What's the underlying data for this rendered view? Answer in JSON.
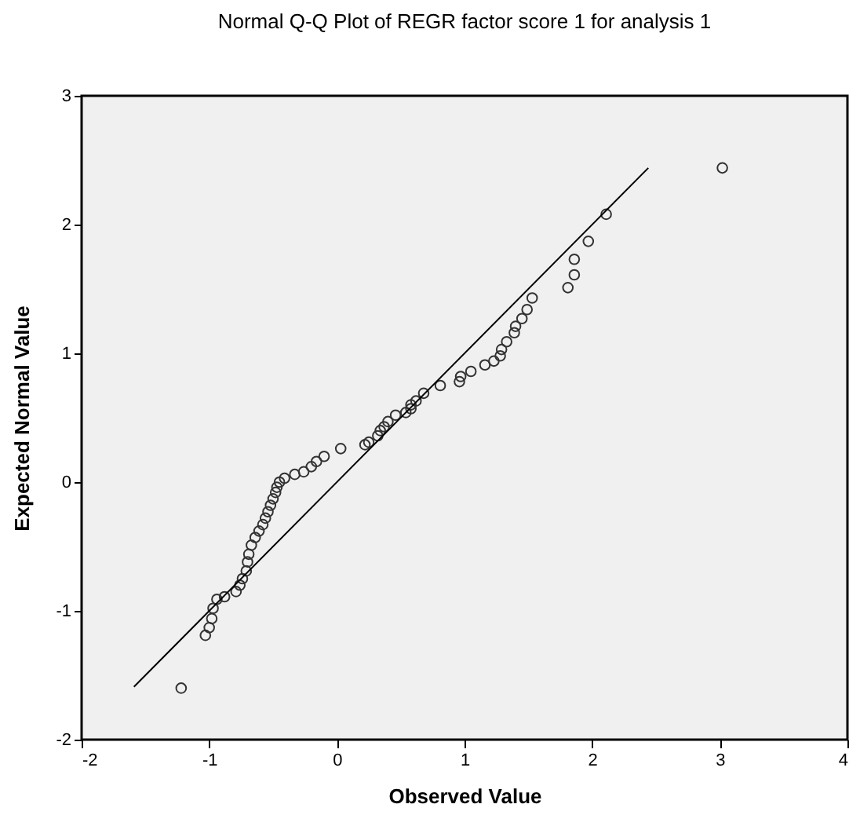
{
  "chart_data": {
    "type": "scatter",
    "title": "Normal Q-Q Plot of REGR factor score   1 for analysis 1",
    "xlabel": "Observed Value",
    "ylabel": "Expected Normal Value",
    "xlim": [
      -2,
      4
    ],
    "ylim": [
      -2,
      3
    ],
    "xticks": [
      -2,
      -1,
      0,
      1,
      2,
      3,
      4
    ],
    "yticks": [
      -2,
      -1,
      0,
      1,
      2,
      3
    ],
    "grid": false,
    "marker": "circle",
    "series": [
      {
        "color": "#333333",
        "x": [
          -1.22,
          -1.03,
          -1.0,
          -0.98,
          -0.97,
          -0.94,
          -0.88,
          -0.79,
          -0.76,
          -0.74,
          -0.71,
          -0.7,
          -0.69,
          -0.67,
          -0.64,
          -0.61,
          -0.58,
          -0.56,
          -0.54,
          -0.52,
          -0.5,
          -0.48,
          -0.47,
          -0.45,
          -0.41,
          -0.33,
          -0.26,
          -0.2,
          -0.16,
          -0.1,
          0.03,
          0.22,
          0.25,
          0.32,
          0.34,
          0.37,
          0.4,
          0.46,
          0.54,
          0.58,
          0.58,
          0.62,
          0.68,
          0.81,
          0.96,
          0.97,
          1.05,
          1.16,
          1.23,
          1.28,
          1.29,
          1.33,
          1.39,
          1.4,
          1.45,
          1.49,
          1.53,
          1.81,
          1.86,
          1.86,
          1.97,
          2.11,
          3.02
        ],
        "values": [
          -1.6,
          -1.19,
          -1.13,
          -1.06,
          -0.98,
          -0.91,
          -0.89,
          -0.85,
          -0.8,
          -0.75,
          -0.69,
          -0.62,
          -0.56,
          -0.49,
          -0.43,
          -0.38,
          -0.33,
          -0.28,
          -0.23,
          -0.18,
          -0.13,
          -0.08,
          -0.04,
          0.0,
          0.03,
          0.06,
          0.08,
          0.12,
          0.16,
          0.2,
          0.26,
          0.29,
          0.31,
          0.36,
          0.4,
          0.43,
          0.47,
          0.52,
          0.54,
          0.57,
          0.6,
          0.63,
          0.69,
          0.75,
          0.78,
          0.82,
          0.86,
          0.91,
          0.94,
          0.98,
          1.03,
          1.09,
          1.16,
          1.21,
          1.27,
          1.34,
          1.43,
          1.51,
          1.61,
          1.73,
          1.87,
          2.08,
          2.44
        ]
      },
      {
        "type": "line",
        "color": "#000000",
        "marker": "none",
        "x": [
          -1.59,
          2.44
        ],
        "values": [
          -1.59,
          2.44
        ]
      }
    ]
  }
}
